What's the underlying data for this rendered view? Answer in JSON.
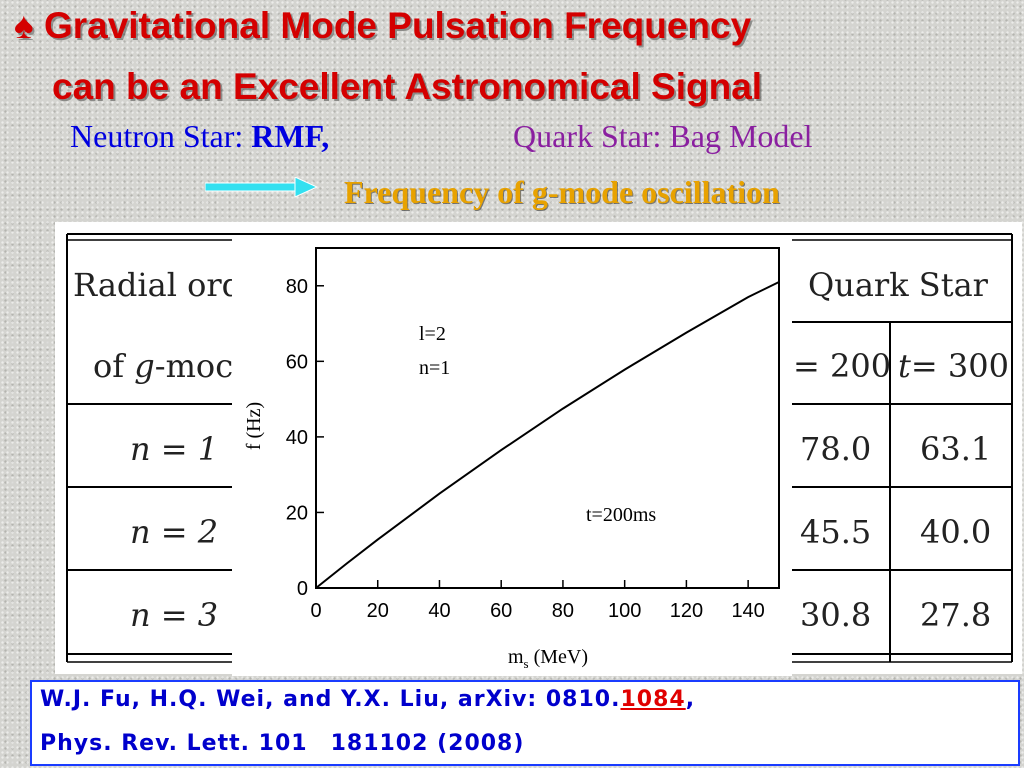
{
  "title": {
    "bullet": "♠",
    "line1": "Gravitational Mode Pulsation Frequency",
    "line2": "can be an Excellent Astronomical Signal"
  },
  "subtitle": {
    "ns_prefix": "Neutron Star: ",
    "ns_model": "RMF,",
    "qs_prefix": "Quark Star: ",
    "qs_model": "Bag Model"
  },
  "frequency_label": "Frequency of g-mode oscillation",
  "colors": {
    "title": "#d40000",
    "neutron_star": "#0000e0",
    "quark_star": "#8a1fa0",
    "frequency_label": "#e8a200",
    "arrow": "#33e0f0",
    "citation": "#0000cc",
    "citation_highlight": "#e00000"
  },
  "table": {
    "header_left_line1": "Radial ord",
    "header_left_line2_pre": "of ",
    "header_left_line2_g": "g",
    "header_left_line2_post": "-moc",
    "header_right": "Quark Star",
    "col1_header_op": "= 200",
    "col2_header_t": "t",
    "col2_header_op": "= 300",
    "rows": [
      {
        "n_label": "n = 1",
        "col1": "78.0",
        "col2": "63.1"
      },
      {
        "n_label": "n = 2",
        "col1": "45.5",
        "col2": "40.0"
      },
      {
        "n_label": "n = 3",
        "col1": "30.8",
        "col2": "27.8"
      }
    ]
  },
  "chart_data": {
    "type": "line",
    "xlabel_main": "m",
    "xlabel_sub": "s",
    "xlabel_unit": " (MeV)",
    "ylabel": "f (Hz)",
    "xlim": [
      0,
      150
    ],
    "ylim": [
      0,
      90
    ],
    "xticks": [
      0,
      20,
      40,
      60,
      80,
      100,
      120,
      140
    ],
    "yticks": [
      0,
      20,
      40,
      60,
      80
    ],
    "annotations": [
      "l=2",
      "n=1",
      "t=200ms"
    ],
    "series": [
      {
        "x": [
          0,
          10,
          20,
          40,
          60,
          80,
          100,
          120,
          140,
          150
        ],
        "y": [
          0,
          6.5,
          12.8,
          25.0,
          36.5,
          47.5,
          57.8,
          67.6,
          77.0,
          81.0
        ]
      }
    ]
  },
  "citation": {
    "line1_pre": "W.J. Fu, H.Q. Wei, and Y.X. Liu, arXiv: 0810.",
    "line1_highlight": "1084",
    "line1_post": ",",
    "line2": "Phys. Rev. Lett. 101　181102 (2008)"
  }
}
